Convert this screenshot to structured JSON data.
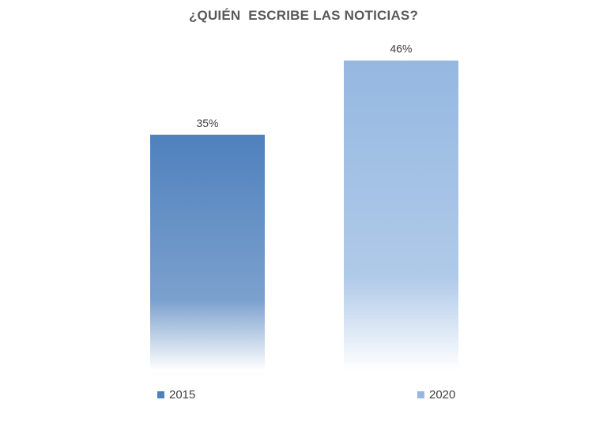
{
  "chart_data": {
    "type": "bar",
    "title": "¿QUIÉN  ESCRIBE LAS NOTICIAS?",
    "categories": [
      "2015",
      "2020"
    ],
    "values": [
      35,
      46
    ],
    "value_labels": [
      "35%",
      "46%"
    ],
    "unit": "%",
    "xlabel": "",
    "ylabel": "",
    "ylim": [
      0,
      50
    ],
    "grid": false,
    "legend": "bottom",
    "colors": [
      "#4f81bd",
      "#95b8e1"
    ]
  }
}
